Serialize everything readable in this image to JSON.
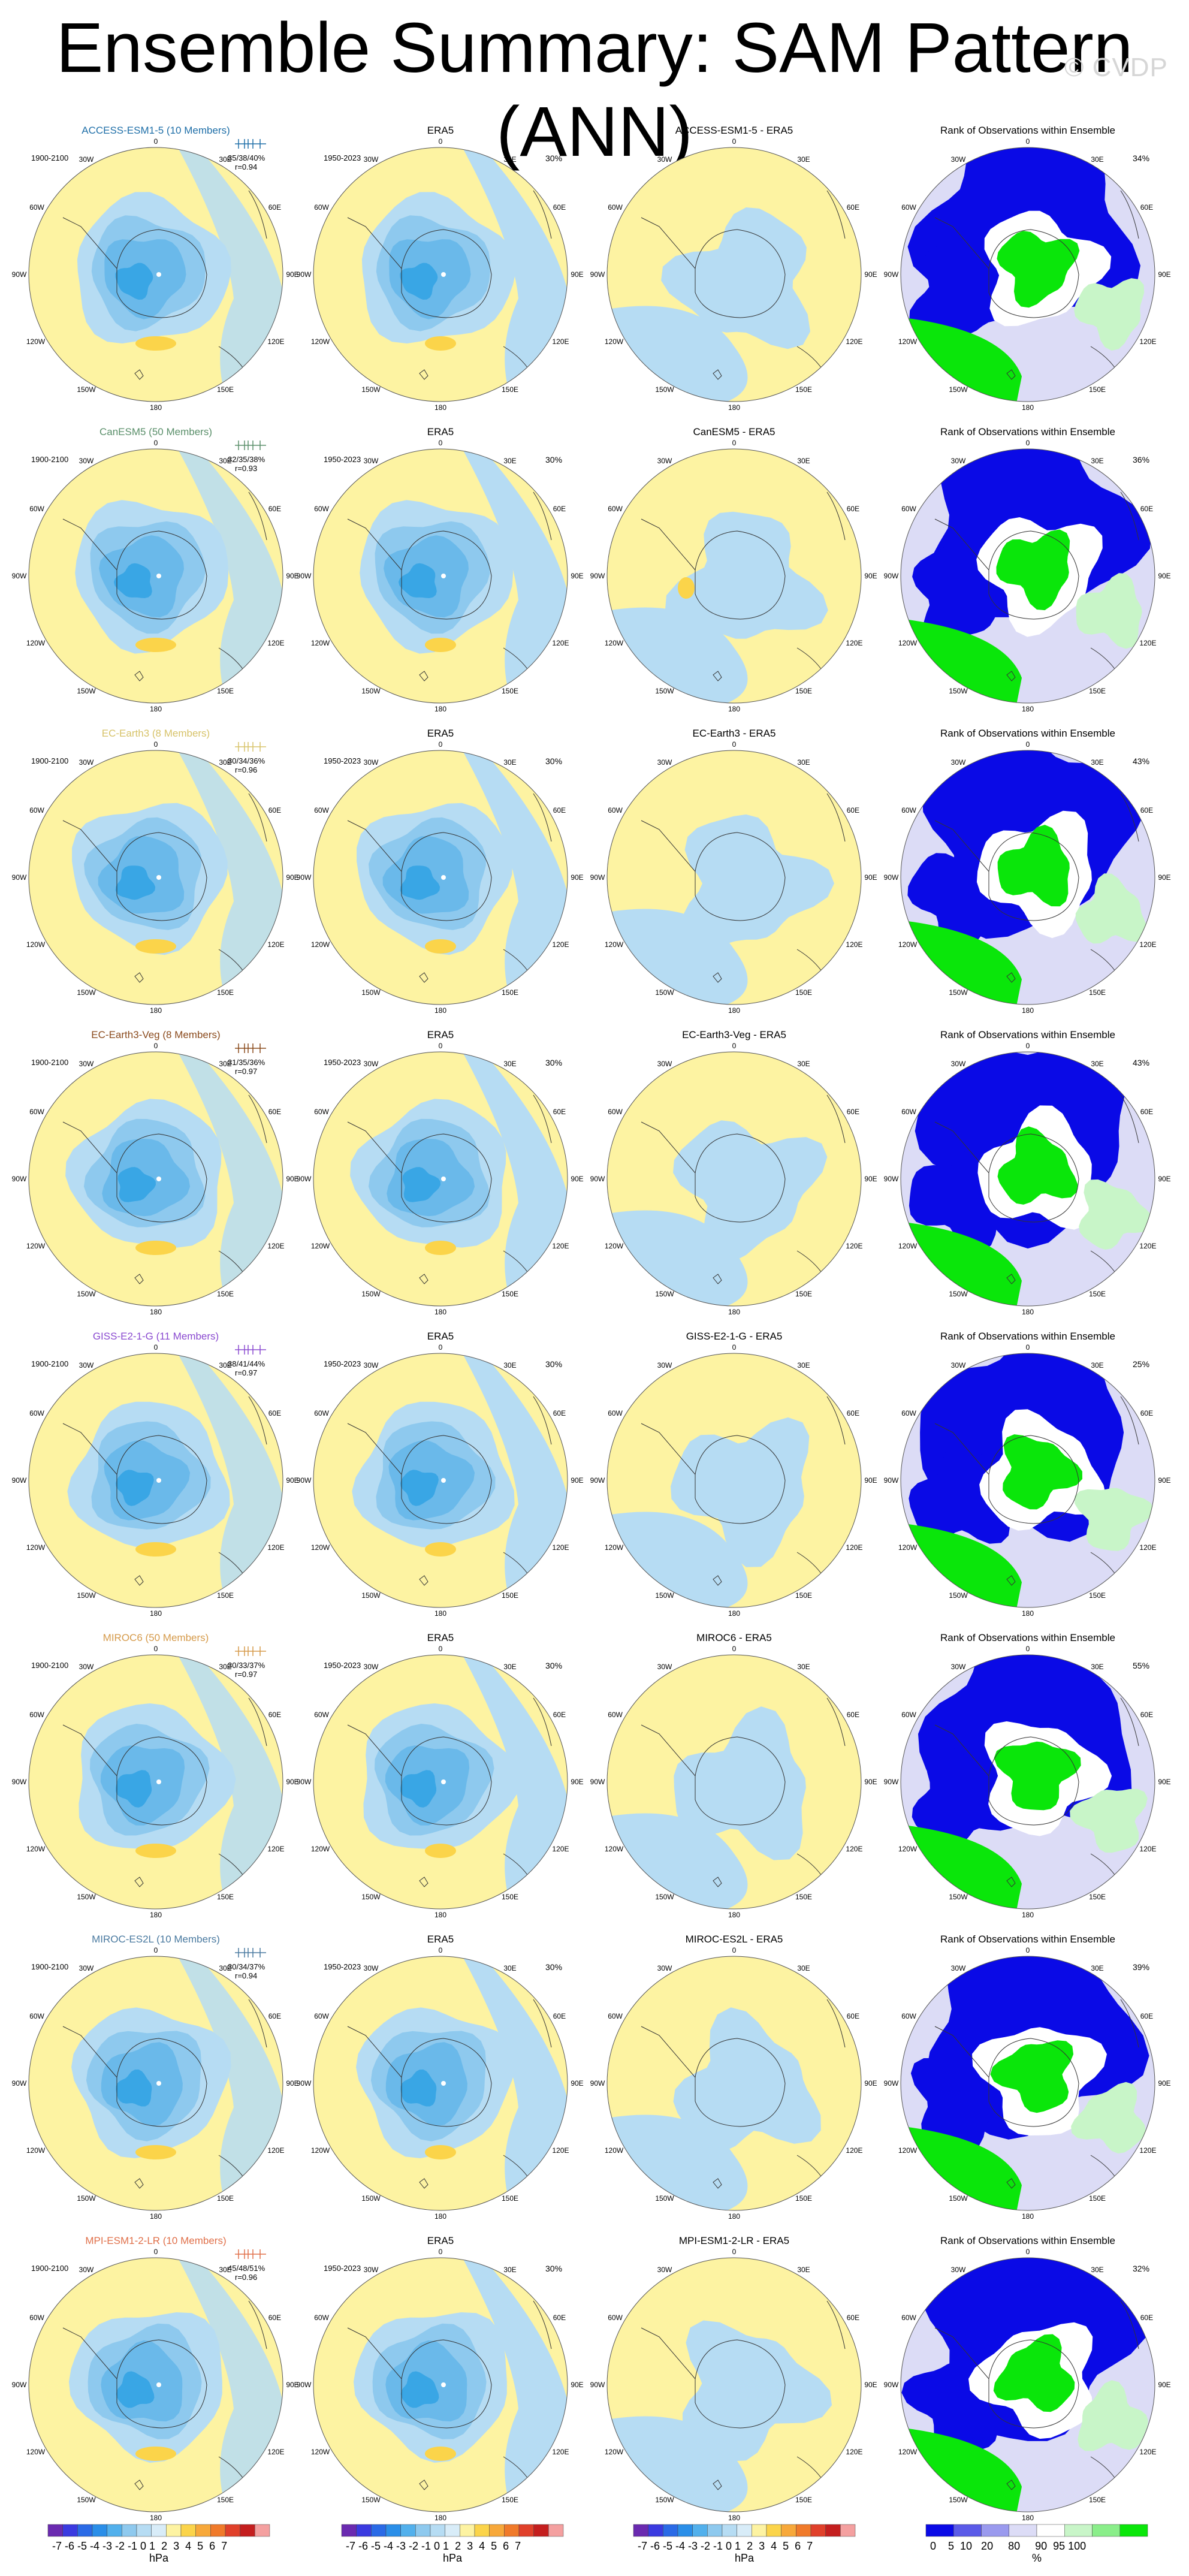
{
  "title": "Ensemble Summary: SAM Pattern (ANN)",
  "watermark": "© CVDP",
  "colors": {
    "yellow": "#fdf3a2",
    "lightblue": "#b6dcf3",
    "mid1": "#8ec9ee",
    "mid2": "#6ab9ea",
    "deep": "#39a6e5",
    "orange": "#fbd44a",
    "rank_blue": "#0a0ae6",
    "rank_green": "#0ae60a",
    "rank_lav": "#dcdcf6",
    "rank_lgreen": "#c8f5c8"
  },
  "rows": [
    {
      "model": "ACCESS-ESM1-5 (10 Members)",
      "model_color": "#1f6fa8",
      "period": "1900-2100",
      "stats": "35/38/40%",
      "r": "r=0.94",
      "obs_title": "ERA5",
      "obs_period": "1950-2023",
      "obs_pct": "30%",
      "diff_title": "ACCESS-ESM1-5 - ERA5",
      "rank_title": "Rank of Observations within Ensemble",
      "rank_pct": "34%"
    },
    {
      "model": "CanESM5 (50 Members)",
      "model_color": "#5a8f6a",
      "period": "1900-2100",
      "stats": "32/35/38%",
      "r": "r=0.93",
      "obs_title": "ERA5",
      "obs_period": "1950-2023",
      "obs_pct": "30%",
      "diff_title": "CanESM5 - ERA5",
      "rank_title": "Rank of Observations within Ensemble",
      "rank_pct": "36%"
    },
    {
      "model": "EC-Earth3 (8 Members)",
      "model_color": "#d7c36a",
      "period": "1900-2100",
      "stats": "30/34/36%",
      "r": "r=0.96",
      "obs_title": "ERA5",
      "obs_period": "1950-2023",
      "obs_pct": "30%",
      "diff_title": "EC-Earth3 - ERA5",
      "rank_title": "Rank of Observations within Ensemble",
      "rank_pct": "43%"
    },
    {
      "model": "EC-Earth3-Veg (8 Members)",
      "model_color": "#8a4a1c",
      "period": "1900-2100",
      "stats": "31/35/36%",
      "r": "r=0.97",
      "obs_title": "ERA5",
      "obs_period": "1950-2023",
      "obs_pct": "30%",
      "diff_title": "EC-Earth3-Veg - ERA5",
      "rank_title": "Rank of Observations within Ensemble",
      "rank_pct": "43%"
    },
    {
      "model": "GISS-E2-1-G (11 Members)",
      "model_color": "#8a4ad0",
      "period": "1900-2100",
      "stats": "38/41/44%",
      "r": "r=0.97",
      "obs_title": "ERA5",
      "obs_period": "1950-2023",
      "obs_pct": "30%",
      "diff_title": "GISS-E2-1-G - ERA5",
      "rank_title": "Rank of Observations within Ensemble",
      "rank_pct": "25%"
    },
    {
      "model": "MIROC6 (50 Members)",
      "model_color": "#d59a4a",
      "period": "1900-2100",
      "stats": "30/33/37%",
      "r": "r=0.97",
      "obs_title": "ERA5",
      "obs_period": "1950-2023",
      "obs_pct": "30%",
      "diff_title": "MIROC6 - ERA5",
      "rank_title": "Rank of Observations within Ensemble",
      "rank_pct": "55%"
    },
    {
      "model": "MIROC-ES2L (10 Members)",
      "model_color": "#4a7aa0",
      "period": "1900-2100",
      "stats": "30/34/37%",
      "r": "r=0.94",
      "obs_title": "ERA5",
      "obs_period": "1950-2023",
      "obs_pct": "30%",
      "diff_title": "MIROC-ES2L - ERA5",
      "rank_title": "Rank of Observations within Ensemble",
      "rank_pct": "39%"
    },
    {
      "model": "MPI-ESM1-2-LR (10 Members)",
      "model_color": "#e0704a",
      "period": "1900-2100",
      "stats": "45/48/51%",
      "r": "r=0.96",
      "obs_title": "ERA5",
      "obs_period": "1950-2023",
      "obs_pct": "30%",
      "diff_title": "MPI-ESM1-2-LR - ERA5",
      "rank_title": "Rank of Observations within Ensemble",
      "rank_pct": "32%"
    }
  ],
  "map_labels": {
    "top": "0",
    "bottom": "180",
    "left": "90W",
    "right": "90E",
    "ul1": "30W",
    "ul2": "60W",
    "ur1": "30E",
    "ur2": "60E",
    "ll1": "120W",
    "ll2": "150W",
    "lr1": "120E",
    "lr2": "150E"
  },
  "colorbars": [
    {
      "ticks": "-7 -6 -5 -4 -3 -2 -1 0 1  2  3  4  5  6  7",
      "unit": "hPa",
      "colors": [
        "#6a2ab0",
        "#3a3ae0",
        "#2a6ae6",
        "#2a8ee8",
        "#52b0ec",
        "#8ec9ee",
        "#b6dcf3",
        "#d8ecf8",
        "#fdf3a2",
        "#fbd44a",
        "#f7a83a",
        "#f07a2a",
        "#e0402a",
        "#c41e1e",
        "#f4a0a0"
      ]
    },
    {
      "ticks": "-7 -6 -5 -4 -3 -2 -1 0 1  2  3  4  5  6  7",
      "unit": "hPa",
      "colors": [
        "#6a2ab0",
        "#3a3ae0",
        "#2a6ae6",
        "#2a8ee8",
        "#52b0ec",
        "#8ec9ee",
        "#b6dcf3",
        "#d8ecf8",
        "#fdf3a2",
        "#fbd44a",
        "#f7a83a",
        "#f07a2a",
        "#e0402a",
        "#c41e1e",
        "#f4a0a0"
      ]
    },
    {
      "ticks": "-7 -6 -5 -4 -3 -2 -1 0 1  2  3  4  5  6  7",
      "unit": "hPa",
      "colors": [
        "#6a2ab0",
        "#3a3ae0",
        "#2a6ae6",
        "#2a8ee8",
        "#52b0ec",
        "#8ec9ee",
        "#b6dcf3",
        "#d8ecf8",
        "#fdf3a2",
        "#fbd44a",
        "#f7a83a",
        "#f07a2a",
        "#e0402a",
        "#c41e1e",
        "#f4a0a0"
      ]
    },
    {
      "ticks": "0    5  10   20     80     90  95 100",
      "unit": "%",
      "colors": [
        "#0a0ae6",
        "#5a5ae8",
        "#9a9aee",
        "#dcdcf6",
        "#ffffff",
        "#c8f5c8",
        "#8aee8a",
        "#0ae60a"
      ]
    }
  ]
}
